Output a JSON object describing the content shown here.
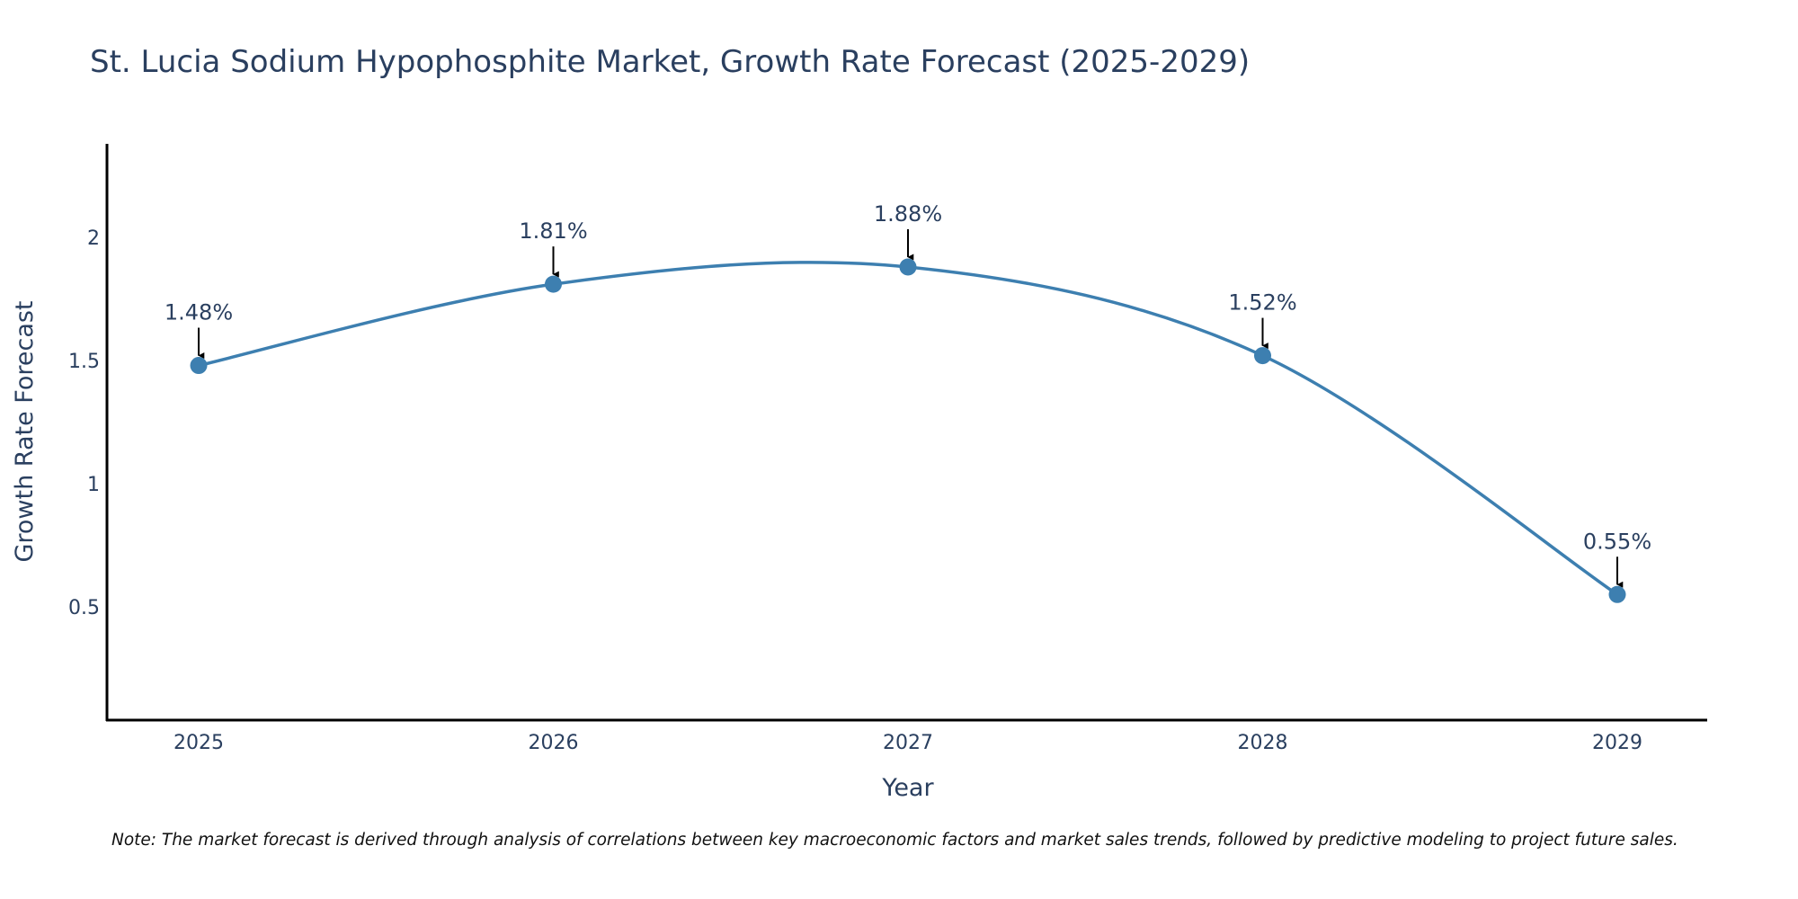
{
  "chart_data": {
    "type": "line",
    "title": "St. Lucia Sodium Hypophosphite Market, Growth Rate Forecast (2025-2029)",
    "xlabel": "Year",
    "ylabel": "Growth Rate Forecast",
    "categories": [
      "2025",
      "2026",
      "2027",
      "2028",
      "2029"
    ],
    "series": [
      {
        "name": "Growth Rate Forecast",
        "values": [
          1.48,
          1.81,
          1.88,
          1.52,
          0.55
        ],
        "labels": [
          "1.48%",
          "1.81%",
          "1.88%",
          "1.52%",
          "0.55%"
        ]
      }
    ],
    "y_ticks": [
      0.5,
      1,
      1.5,
      2
    ],
    "y_tick_labels": [
      "0.5",
      "1",
      "1.5",
      "2"
    ],
    "ylim": [
      0.04,
      2.38
    ],
    "line_shape": "spline",
    "line_color": "#3d7fb0",
    "marker_color": "#3d7fb0",
    "annotation_arrows": true,
    "grid": false,
    "note": "Note: The market forecast is derived through analysis of correlations between key macroeconomic factors and market sales trends, followed by predictive modeling to project future sales."
  }
}
